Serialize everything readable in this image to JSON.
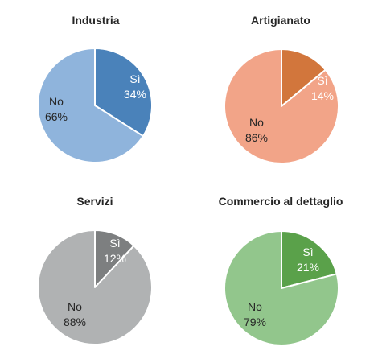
{
  "chart_data": [
    {
      "type": "pie",
      "title": "Industria",
      "categories": [
        "Sì",
        "No"
      ],
      "values": [
        34,
        66
      ],
      "labels": [
        "34%",
        "66%"
      ],
      "colors": [
        "#4a82ba",
        "#8fb4dc"
      ],
      "label_colors": [
        "#ffffff",
        "#262626"
      ]
    },
    {
      "type": "pie",
      "title": "Artigianato",
      "categories": [
        "Sì",
        "No"
      ],
      "values": [
        14,
        86
      ],
      "labels": [
        "14%",
        "86%"
      ],
      "colors": [
        "#d2763c",
        "#f2a488"
      ],
      "label_colors": [
        "#ffffff",
        "#262626"
      ]
    },
    {
      "type": "pie",
      "title": "Servizi",
      "categories": [
        "Sì",
        "No"
      ],
      "values": [
        12,
        88
      ],
      "labels": [
        "12%",
        "88%"
      ],
      "colors": [
        "#7d7f80",
        "#b0b2b3"
      ],
      "label_colors": [
        "#ffffff",
        "#262626"
      ]
    },
    {
      "type": "pie",
      "title": "Commercio al dettaglio",
      "categories": [
        "Sì",
        "No"
      ],
      "values": [
        21,
        79
      ],
      "labels": [
        "21%",
        "79%"
      ],
      "colors": [
        "#5aa14a",
        "#92c68c"
      ],
      "label_colors": [
        "#ffffff",
        "#262626"
      ]
    }
  ]
}
